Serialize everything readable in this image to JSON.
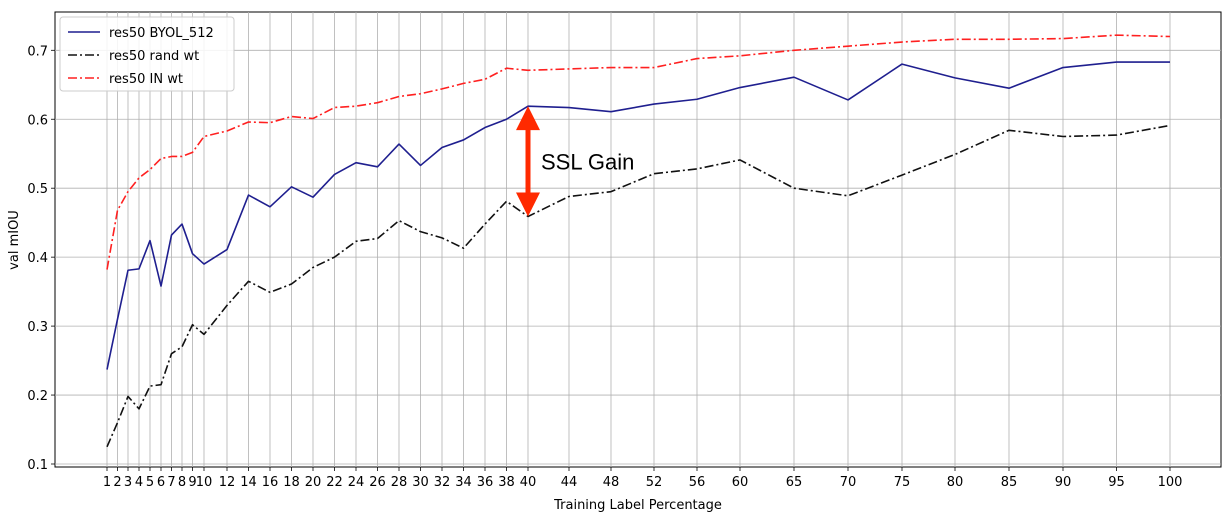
{
  "chart_data": {
    "type": "line",
    "title": "",
    "xlabel": "Training Label Percentage",
    "ylabel": "val mIOU",
    "ylim": [
      0.09,
      0.74
    ],
    "grid": true,
    "legend_position": "top-left",
    "x": [
      1,
      2,
      3,
      4,
      5,
      6,
      7,
      8,
      9,
      10,
      12,
      14,
      16,
      18,
      20,
      22,
      24,
      26,
      28,
      30,
      32,
      34,
      36,
      38,
      40,
      44,
      48,
      52,
      56,
      60,
      65,
      70,
      75,
      80,
      85,
      90,
      95,
      100
    ],
    "x_tick_labels": [
      "1",
      "2",
      "3",
      "4",
      "5",
      "6",
      "7",
      "8",
      "9",
      "10",
      "12",
      "14",
      "16",
      "18",
      "20",
      "22",
      "24",
      "26",
      "28",
      "30",
      "32",
      "34",
      "36",
      "38",
      "40",
      "44",
      "48",
      "52",
      "56",
      "60",
      "65",
      "70",
      "75",
      "80",
      "85",
      "90",
      "95",
      "100"
    ],
    "y_ticks": [
      0.1,
      0.2,
      0.3,
      0.4,
      0.5,
      0.6,
      0.7
    ],
    "y_tick_labels": [
      "0.1",
      "0.2",
      "0.3",
      "0.4",
      "0.5",
      "0.6",
      "0.7"
    ],
    "series": [
      {
        "name": "res50 BYOL_512",
        "color": "#1f1f8f",
        "linestyle": "solid",
        "values": [
          0.237,
          0.31,
          0.381,
          0.383,
          0.424,
          0.358,
          0.432,
          0.448,
          0.405,
          0.39,
          0.411,
          0.49,
          0.473,
          0.502,
          0.487,
          0.52,
          0.537,
          0.531,
          0.564,
          0.533,
          0.559,
          0.57,
          0.588,
          0.6,
          0.619,
          0.617,
          0.611,
          0.622,
          0.629,
          0.646,
          0.661,
          0.628,
          0.68,
          0.66,
          0.645,
          0.675,
          0.683,
          0.683
        ]
      },
      {
        "name": "res50 rand wt",
        "color": "#111111",
        "linestyle": "dashdot",
        "values": [
          0.125,
          0.16,
          0.198,
          0.18,
          0.213,
          0.215,
          0.26,
          0.27,
          0.302,
          0.288,
          0.33,
          0.365,
          0.349,
          0.361,
          0.385,
          0.4,
          0.423,
          0.427,
          0.453,
          0.437,
          0.428,
          0.413,
          0.448,
          0.481,
          0.459,
          0.488,
          0.495,
          0.521,
          0.528,
          0.541,
          0.5,
          0.489,
          0.519,
          0.549,
          0.584,
          0.575,
          0.577,
          0.591
        ]
      },
      {
        "name": "res50 IN wt",
        "color": "#ff2020",
        "linestyle": "dashdot",
        "values": [
          0.382,
          0.468,
          0.495,
          0.515,
          0.527,
          0.543,
          0.546,
          0.546,
          0.552,
          0.575,
          0.583,
          0.596,
          0.595,
          0.604,
          0.601,
          0.617,
          0.619,
          0.624,
          0.633,
          0.637,
          0.644,
          0.652,
          0.658,
          0.674,
          0.671,
          0.673,
          0.675,
          0.675,
          0.688,
          0.692,
          0.7,
          0.706,
          0.712,
          0.716,
          0.716,
          0.717,
          0.722,
          0.72
        ]
      }
    ],
    "annotations": [
      {
        "text": "SSL Gain",
        "arrow_x": 40,
        "arrow_y_from": 0.459,
        "arrow_y_to": 0.619,
        "arrow_color": "#ff2a00"
      }
    ]
  }
}
